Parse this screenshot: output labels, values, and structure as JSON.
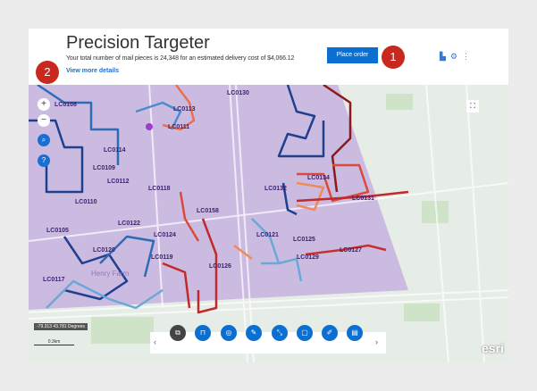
{
  "header": {
    "title": "Precision Targeter",
    "summary": "Your total number of mail pieces is 24,348 for an estimated delivery cost of $4,066.12",
    "view_details": "View more details",
    "place_order": "Place order",
    "icons": [
      "chart-icon",
      "settings-icon",
      "more-icon"
    ]
  },
  "annotations": [
    "1",
    "2"
  ],
  "map": {
    "labels": [
      "LC0108",
      "LC0130",
      "LC0113",
      "LC0111",
      "LC0114",
      "LC0109",
      "LC0112",
      "LC0118",
      "LC0110",
      "LC0134",
      "LC0132",
      "LC0131",
      "LC0158",
      "LC0122",
      "LC0105",
      "LC0124",
      "LC0120",
      "LC0121",
      "LC0125",
      "LC0127",
      "LC0129",
      "LC0119",
      "LC0126",
      "LC0117"
    ],
    "place": "Henry Farm",
    "coordinates": "-79.313 43.781 Degrees",
    "scale": "0.3km",
    "attribution": "esri",
    "zoom_in": "+",
    "zoom_out": "−"
  },
  "toolbar": {
    "tools": [
      "layers-tool",
      "pin-tool",
      "geo-tool",
      "edit-tool",
      "route-tool",
      "area-tool",
      "draw-tool",
      "table-tool"
    ],
    "active_index": 0
  },
  "colors": {
    "accent": "#0b6fd1",
    "badge": "#c8281e",
    "selection": "#c9b6e0"
  }
}
